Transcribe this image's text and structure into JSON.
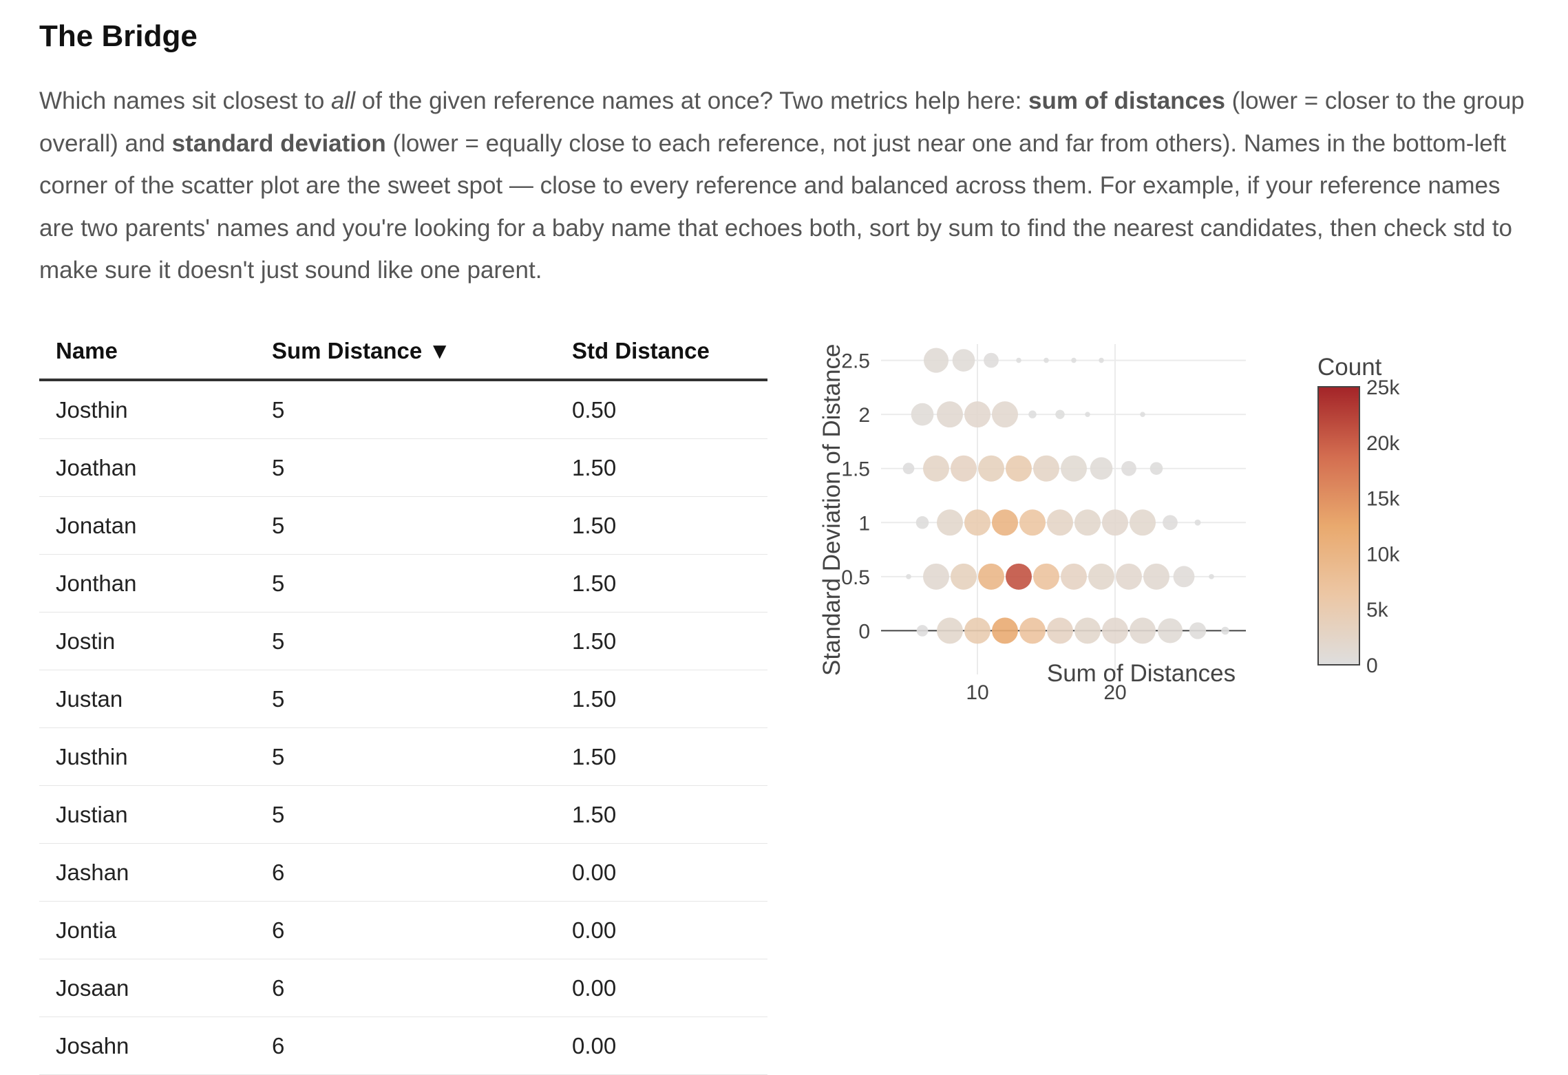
{
  "section": {
    "title": "The Bridge",
    "intro": {
      "p1": "Which names sit closest to ",
      "p1_em": "all",
      "p2": " of the given reference names at once? Two metrics help here: ",
      "b1": "sum of distances",
      "p3": " (lower = closer to the group overall) and ",
      "b2": "standard deviation",
      "p4": " (lower = equally close to each reference, not just near one and far from others). Names in the bottom-left corner of the scatter plot are the sweet spot — close to every reference and balanced across them. For example, if your reference names are two parents' names and you're looking for a baby name that echoes both, sort by sum to find the nearest candidates, then check std to make sure it doesn't just sound like one parent."
    }
  },
  "table": {
    "headers": {
      "name": "Name",
      "sum": "Sum Distance",
      "sort_arrow": "▼",
      "std": "Std Distance"
    },
    "rows": [
      {
        "name": "Josthin",
        "sum": "5",
        "std": "0.50"
      },
      {
        "name": "Joathan",
        "sum": "5",
        "std": "1.50"
      },
      {
        "name": "Jonatan",
        "sum": "5",
        "std": "1.50"
      },
      {
        "name": "Jonthan",
        "sum": "5",
        "std": "1.50"
      },
      {
        "name": "Jostin",
        "sum": "5",
        "std": "1.50"
      },
      {
        "name": "Justan",
        "sum": "5",
        "std": "1.50"
      },
      {
        "name": "Justhin",
        "sum": "5",
        "std": "1.50"
      },
      {
        "name": "Justian",
        "sum": "5",
        "std": "1.50"
      },
      {
        "name": "Jashan",
        "sum": "6",
        "std": "0.00"
      },
      {
        "name": "Jontia",
        "sum": "6",
        "std": "0.00"
      },
      {
        "name": "Josaan",
        "sum": "6",
        "std": "0.00"
      },
      {
        "name": "Josahn",
        "sum": "6",
        "std": "0.00"
      }
    ]
  },
  "chart_data": {
    "type": "scatter",
    "title": "",
    "xlabel": "Sum of Distances",
    "ylabel": "Standard Deviation of Distances",
    "xlim": [
      3,
      29.5
    ],
    "ylim": [
      -0.15,
      2.65
    ],
    "x_ticks": [
      "10",
      "20"
    ],
    "y_ticks": [
      "0",
      "0.5",
      "1",
      "1.5",
      "2",
      "2.5"
    ],
    "grid": true,
    "colorbar": {
      "title": "Count",
      "ticks": [
        "25k",
        "20k",
        "15k",
        "10k",
        "5k",
        "0"
      ],
      "max": 25000
    },
    "colorscale": [
      "#dedede",
      "#ecc7a5",
      "#e9a96e",
      "#d36d50",
      "#a32428"
    ],
    "points": [
      {
        "x": 7,
        "y": 2.5,
        "count": 1000
      },
      {
        "x": 9,
        "y": 2.5,
        "count": 800
      },
      {
        "x": 11,
        "y": 2.5,
        "count": 300
      },
      {
        "x": 13,
        "y": 2.5,
        "count": 10
      },
      {
        "x": 15,
        "y": 2.5,
        "count": 10
      },
      {
        "x": 17,
        "y": 2.5,
        "count": 10
      },
      {
        "x": 19,
        "y": 2.5,
        "count": 10
      },
      {
        "x": 6,
        "y": 2,
        "count": 800
      },
      {
        "x": 8,
        "y": 2,
        "count": 1500
      },
      {
        "x": 10,
        "y": 2,
        "count": 1800
      },
      {
        "x": 12,
        "y": 2,
        "count": 1600
      },
      {
        "x": 14,
        "y": 2,
        "count": 50
      },
      {
        "x": 16,
        "y": 2,
        "count": 80
      },
      {
        "x": 18,
        "y": 2,
        "count": 10
      },
      {
        "x": 22,
        "y": 2,
        "count": 10
      },
      {
        "x": 5,
        "y": 1.5,
        "count": 150
      },
      {
        "x": 7,
        "y": 1.5,
        "count": 2500
      },
      {
        "x": 9,
        "y": 1.5,
        "count": 3000
      },
      {
        "x": 11,
        "y": 1.5,
        "count": 3500
      },
      {
        "x": 13,
        "y": 1.5,
        "count": 5000
      },
      {
        "x": 15,
        "y": 1.5,
        "count": 2500
      },
      {
        "x": 17,
        "y": 1.5,
        "count": 1200
      },
      {
        "x": 19,
        "y": 1.5,
        "count": 800
      },
      {
        "x": 21,
        "y": 1.5,
        "count": 300
      },
      {
        "x": 23,
        "y": 1.5,
        "count": 200
      },
      {
        "x": 6,
        "y": 1,
        "count": 200
      },
      {
        "x": 8,
        "y": 1,
        "count": 2000
      },
      {
        "x": 10,
        "y": 1,
        "count": 5000
      },
      {
        "x": 12,
        "y": 1,
        "count": 10000
      },
      {
        "x": 14,
        "y": 1,
        "count": 6500
      },
      {
        "x": 16,
        "y": 1,
        "count": 2500
      },
      {
        "x": 18,
        "y": 1,
        "count": 2000
      },
      {
        "x": 20,
        "y": 1,
        "count": 1800
      },
      {
        "x": 22,
        "y": 1,
        "count": 1700
      },
      {
        "x": 24,
        "y": 1,
        "count": 300
      },
      {
        "x": 26,
        "y": 1,
        "count": 20
      },
      {
        "x": 5,
        "y": 0.5,
        "count": 10
      },
      {
        "x": 7,
        "y": 0.5,
        "count": 1500
      },
      {
        "x": 9,
        "y": 0.5,
        "count": 3500
      },
      {
        "x": 11,
        "y": 0.5,
        "count": 9500
      },
      {
        "x": 13,
        "y": 0.5,
        "count": 21000
      },
      {
        "x": 15,
        "y": 0.5,
        "count": 7000
      },
      {
        "x": 17,
        "y": 0.5,
        "count": 3000
      },
      {
        "x": 19,
        "y": 0.5,
        "count": 2000
      },
      {
        "x": 21,
        "y": 0.5,
        "count": 1800
      },
      {
        "x": 23,
        "y": 0.5,
        "count": 1500
      },
      {
        "x": 25,
        "y": 0.5,
        "count": 700
      },
      {
        "x": 27,
        "y": 0.5,
        "count": 10
      },
      {
        "x": 6,
        "y": 0,
        "count": 150
      },
      {
        "x": 8,
        "y": 0,
        "count": 2000
      },
      {
        "x": 10,
        "y": 0,
        "count": 5000
      },
      {
        "x": 12,
        "y": 0,
        "count": 12000
      },
      {
        "x": 14,
        "y": 0,
        "count": 7000
      },
      {
        "x": 16,
        "y": 0,
        "count": 3000
      },
      {
        "x": 18,
        "y": 0,
        "count": 2000
      },
      {
        "x": 20,
        "y": 0,
        "count": 1800
      },
      {
        "x": 22,
        "y": 0,
        "count": 1500
      },
      {
        "x": 24,
        "y": 0,
        "count": 1000
      },
      {
        "x": 26,
        "y": 0,
        "count": 400
      },
      {
        "x": 28,
        "y": 0,
        "count": 50
      }
    ]
  }
}
